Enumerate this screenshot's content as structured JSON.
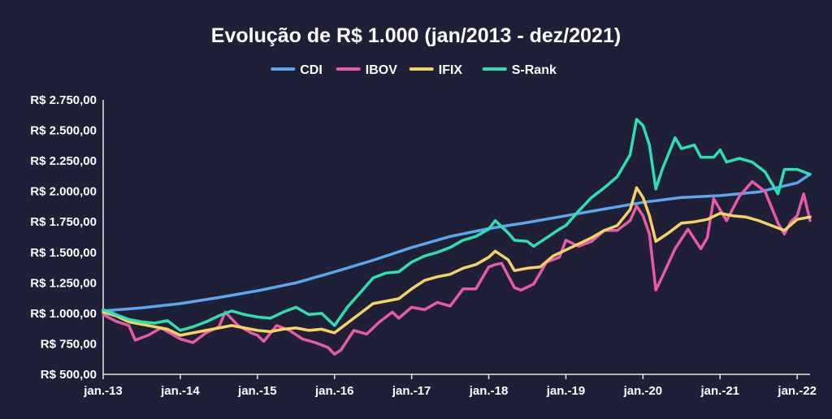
{
  "chart_data": {
    "type": "line",
    "title": "Evolução de R$ 1.000 (jan/2013 - dez/2021)",
    "xlabel": "",
    "ylabel": "",
    "legend_position": "top-center",
    "grid": false,
    "x_ticks": [
      "jan.-13",
      "jan.-14",
      "jan.-15",
      "jan.-16",
      "jan.-17",
      "jan.-18",
      "jan.-19",
      "jan.-20",
      "jan.-21",
      "jan.-22"
    ],
    "x_range": [
      "2013-01",
      "2022-03"
    ],
    "y_ticks": [
      "R$ 500,00",
      "R$ 750,00",
      "R$ 1.000,00",
      "R$ 1.250,00",
      "R$ 1.500,00",
      "R$ 1.750,00",
      "R$ 2.000,00",
      "R$ 2.250,00",
      "R$ 2.500,00",
      "R$ 2.750,00"
    ],
    "ylim": [
      500,
      2750
    ],
    "series": [
      {
        "name": "CDI",
        "color": "#5aa6f2",
        "points": [
          [
            "2013-01",
            1020
          ],
          [
            "2013-07",
            1045
          ],
          [
            "2014-01",
            1080
          ],
          [
            "2014-07",
            1130
          ],
          [
            "2015-01",
            1185
          ],
          [
            "2015-07",
            1250
          ],
          [
            "2016-01",
            1340
          ],
          [
            "2016-07",
            1435
          ],
          [
            "2017-01",
            1540
          ],
          [
            "2017-07",
            1630
          ],
          [
            "2018-01",
            1695
          ],
          [
            "2018-07",
            1745
          ],
          [
            "2019-01",
            1800
          ],
          [
            "2019-07",
            1855
          ],
          [
            "2020-01",
            1910
          ],
          [
            "2020-07",
            1950
          ],
          [
            "2021-01",
            1965
          ],
          [
            "2021-07",
            1995
          ],
          [
            "2022-01",
            2070
          ],
          [
            "2022-03",
            2140
          ]
        ]
      },
      {
        "name": "IBOV",
        "color": "#e85aa8",
        "points": [
          [
            "2013-01",
            990
          ],
          [
            "2013-03",
            935
          ],
          [
            "2013-05",
            900
          ],
          [
            "2013-06",
            780
          ],
          [
            "2013-08",
            820
          ],
          [
            "2013-10",
            880
          ],
          [
            "2013-12",
            820
          ],
          [
            "2014-01",
            790
          ],
          [
            "2014-03",
            760
          ],
          [
            "2014-05",
            840
          ],
          [
            "2014-07",
            890
          ],
          [
            "2014-08",
            1010
          ],
          [
            "2014-10",
            900
          ],
          [
            "2014-12",
            840
          ],
          [
            "2015-01",
            820
          ],
          [
            "2015-02",
            770
          ],
          [
            "2015-04",
            900
          ],
          [
            "2015-06",
            860
          ],
          [
            "2015-08",
            790
          ],
          [
            "2015-10",
            760
          ],
          [
            "2015-12",
            720
          ],
          [
            "2016-01",
            665
          ],
          [
            "2016-02",
            700
          ],
          [
            "2016-04",
            860
          ],
          [
            "2016-06",
            830
          ],
          [
            "2016-08",
            930
          ],
          [
            "2016-10",
            1010
          ],
          [
            "2016-11",
            960
          ],
          [
            "2017-01",
            1050
          ],
          [
            "2017-03",
            1030
          ],
          [
            "2017-05",
            1090
          ],
          [
            "2017-07",
            1060
          ],
          [
            "2017-09",
            1200
          ],
          [
            "2017-11",
            1200
          ],
          [
            "2018-01",
            1380
          ],
          [
            "2018-02",
            1400
          ],
          [
            "2018-03",
            1410
          ],
          [
            "2018-05",
            1210
          ],
          [
            "2018-06",
            1190
          ],
          [
            "2018-08",
            1240
          ],
          [
            "2018-10",
            1420
          ],
          [
            "2018-12",
            1460
          ],
          [
            "2019-01",
            1600
          ],
          [
            "2019-03",
            1550
          ],
          [
            "2019-05",
            1590
          ],
          [
            "2019-07",
            1680
          ],
          [
            "2019-09",
            1680
          ],
          [
            "2019-11",
            1760
          ],
          [
            "2019-12",
            1880
          ],
          [
            "2020-01",
            1800
          ],
          [
            "2020-02",
            1650
          ],
          [
            "2020-03",
            1190
          ],
          [
            "2020-04",
            1300
          ],
          [
            "2020-06",
            1530
          ],
          [
            "2020-08",
            1690
          ],
          [
            "2020-10",
            1530
          ],
          [
            "2020-11",
            1620
          ],
          [
            "2020-12",
            1940
          ],
          [
            "2021-02",
            1760
          ],
          [
            "2021-04",
            1960
          ],
          [
            "2021-06",
            2080
          ],
          [
            "2021-08",
            2000
          ],
          [
            "2021-10",
            1740
          ],
          [
            "2021-11",
            1650
          ],
          [
            "2021-12",
            1750
          ],
          [
            "2022-01",
            1800
          ],
          [
            "2022-02",
            1980
          ],
          [
            "2022-03",
            1760
          ]
        ]
      },
      {
        "name": "IFIX",
        "color": "#f5d361",
        "points": [
          [
            "2013-01",
            1010
          ],
          [
            "2013-03",
            980
          ],
          [
            "2013-05",
            930
          ],
          [
            "2013-07",
            910
          ],
          [
            "2013-09",
            890
          ],
          [
            "2013-11",
            870
          ],
          [
            "2014-01",
            820
          ],
          [
            "2014-03",
            840
          ],
          [
            "2014-05",
            860
          ],
          [
            "2014-07",
            880
          ],
          [
            "2014-09",
            900
          ],
          [
            "2014-11",
            880
          ],
          [
            "2015-01",
            860
          ],
          [
            "2015-03",
            850
          ],
          [
            "2015-05",
            870
          ],
          [
            "2015-07",
            880
          ],
          [
            "2015-09",
            860
          ],
          [
            "2015-11",
            870
          ],
          [
            "2016-01",
            840
          ],
          [
            "2016-03",
            920
          ],
          [
            "2016-05",
            1000
          ],
          [
            "2016-07",
            1080
          ],
          [
            "2016-09",
            1100
          ],
          [
            "2016-11",
            1120
          ],
          [
            "2017-01",
            1200
          ],
          [
            "2017-03",
            1270
          ],
          [
            "2017-05",
            1300
          ],
          [
            "2017-07",
            1320
          ],
          [
            "2017-09",
            1370
          ],
          [
            "2017-11",
            1400
          ],
          [
            "2018-01",
            1460
          ],
          [
            "2018-02",
            1510
          ],
          [
            "2018-04",
            1440
          ],
          [
            "2018-05",
            1350
          ],
          [
            "2018-07",
            1370
          ],
          [
            "2018-09",
            1380
          ],
          [
            "2018-11",
            1470
          ],
          [
            "2019-01",
            1520
          ],
          [
            "2019-03",
            1570
          ],
          [
            "2019-05",
            1620
          ],
          [
            "2019-07",
            1680
          ],
          [
            "2019-09",
            1720
          ],
          [
            "2019-11",
            1850
          ],
          [
            "2019-12",
            2030
          ],
          [
            "2020-01",
            1950
          ],
          [
            "2020-02",
            1800
          ],
          [
            "2020-03",
            1590
          ],
          [
            "2020-05",
            1660
          ],
          [
            "2020-07",
            1740
          ],
          [
            "2020-09",
            1750
          ],
          [
            "2020-11",
            1770
          ],
          [
            "2021-01",
            1820
          ],
          [
            "2021-03",
            1800
          ],
          [
            "2021-05",
            1790
          ],
          [
            "2021-07",
            1760
          ],
          [
            "2021-09",
            1720
          ],
          [
            "2021-11",
            1680
          ],
          [
            "2022-01",
            1770
          ],
          [
            "2022-03",
            1790
          ]
        ]
      },
      {
        "name": "S-Rank",
        "color": "#2de0b0",
        "points": [
          [
            "2013-01",
            1030
          ],
          [
            "2013-03",
            990
          ],
          [
            "2013-05",
            950
          ],
          [
            "2013-07",
            930
          ],
          [
            "2013-09",
            920
          ],
          [
            "2013-11",
            940
          ],
          [
            "2014-01",
            860
          ],
          [
            "2014-03",
            890
          ],
          [
            "2014-05",
            930
          ],
          [
            "2014-07",
            980
          ],
          [
            "2014-09",
            1020
          ],
          [
            "2014-11",
            990
          ],
          [
            "2015-01",
            970
          ],
          [
            "2015-03",
            960
          ],
          [
            "2015-05",
            1010
          ],
          [
            "2015-07",
            1050
          ],
          [
            "2015-09",
            990
          ],
          [
            "2015-11",
            1000
          ],
          [
            "2016-01",
            900
          ],
          [
            "2016-03",
            1050
          ],
          [
            "2016-05",
            1170
          ],
          [
            "2016-07",
            1290
          ],
          [
            "2016-09",
            1330
          ],
          [
            "2016-11",
            1340
          ],
          [
            "2017-01",
            1420
          ],
          [
            "2017-03",
            1470
          ],
          [
            "2017-05",
            1500
          ],
          [
            "2017-07",
            1540
          ],
          [
            "2017-09",
            1600
          ],
          [
            "2017-11",
            1630
          ],
          [
            "2018-01",
            1690
          ],
          [
            "2018-02",
            1760
          ],
          [
            "2018-04",
            1660
          ],
          [
            "2018-05",
            1600
          ],
          [
            "2018-07",
            1590
          ],
          [
            "2018-08",
            1550
          ],
          [
            "2018-10",
            1620
          ],
          [
            "2018-12",
            1690
          ],
          [
            "2019-01",
            1720
          ],
          [
            "2019-03",
            1840
          ],
          [
            "2019-05",
            1950
          ],
          [
            "2019-07",
            2030
          ],
          [
            "2019-09",
            2120
          ],
          [
            "2019-11",
            2300
          ],
          [
            "2019-12",
            2590
          ],
          [
            "2020-01",
            2540
          ],
          [
            "2020-02",
            2380
          ],
          [
            "2020-03",
            2020
          ],
          [
            "2020-04",
            2180
          ],
          [
            "2020-06",
            2440
          ],
          [
            "2020-07",
            2350
          ],
          [
            "2020-09",
            2380
          ],
          [
            "2020-10",
            2280
          ],
          [
            "2020-12",
            2280
          ],
          [
            "2021-01",
            2340
          ],
          [
            "2021-02",
            2240
          ],
          [
            "2021-04",
            2270
          ],
          [
            "2021-06",
            2240
          ],
          [
            "2021-08",
            2160
          ],
          [
            "2021-10",
            1980
          ],
          [
            "2021-11",
            2180
          ],
          [
            "2022-01",
            2180
          ],
          [
            "2022-03",
            2140
          ]
        ]
      }
    ]
  }
}
